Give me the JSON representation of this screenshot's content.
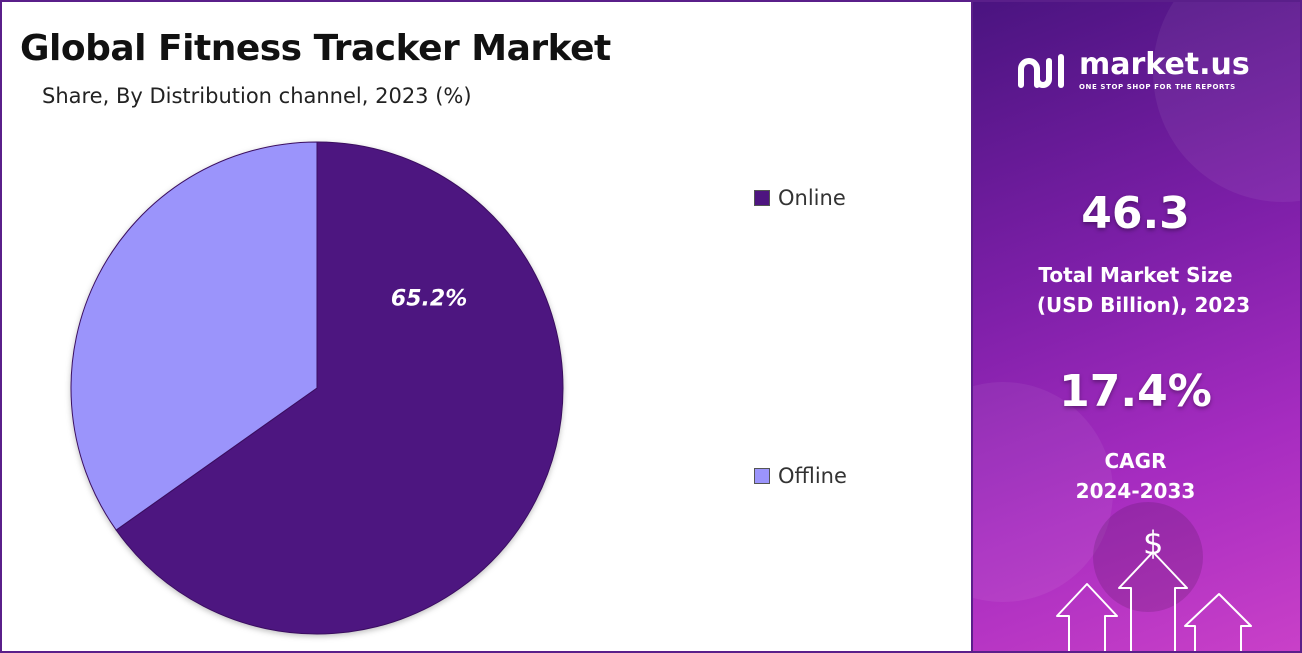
{
  "chart_data": {
    "type": "pie",
    "title": "Global Fitness Tracker Market",
    "subtitle": "Share, By Distribution channel, 2023 (%)",
    "slices": [
      {
        "label": "Online",
        "value": 65.2,
        "color": "#4e1580",
        "data_label": "65.2%"
      },
      {
        "label": "Offline",
        "value": 34.8,
        "color": "#9b94fb",
        "data_label": ""
      }
    ],
    "legend_position": "right"
  },
  "side_panel": {
    "brand_name": "market.us",
    "brand_tagline": "ONE STOP SHOP FOR THE REPORTS",
    "market_size_value": "46.3",
    "market_size_label_line1": "Total Market Size",
    "market_size_label_line2": "(USD Billion), 2023",
    "cagr_value": "17.4%",
    "cagr_label_line1": "CAGR",
    "cagr_label_line2": "2024-2033",
    "dollar_symbol": "$",
    "accent_color": "#7d1fa8",
    "logo_icon": "market-us-logo-icon",
    "decor_icons": [
      "dollar-icon",
      "up-arrow-icon"
    ]
  }
}
